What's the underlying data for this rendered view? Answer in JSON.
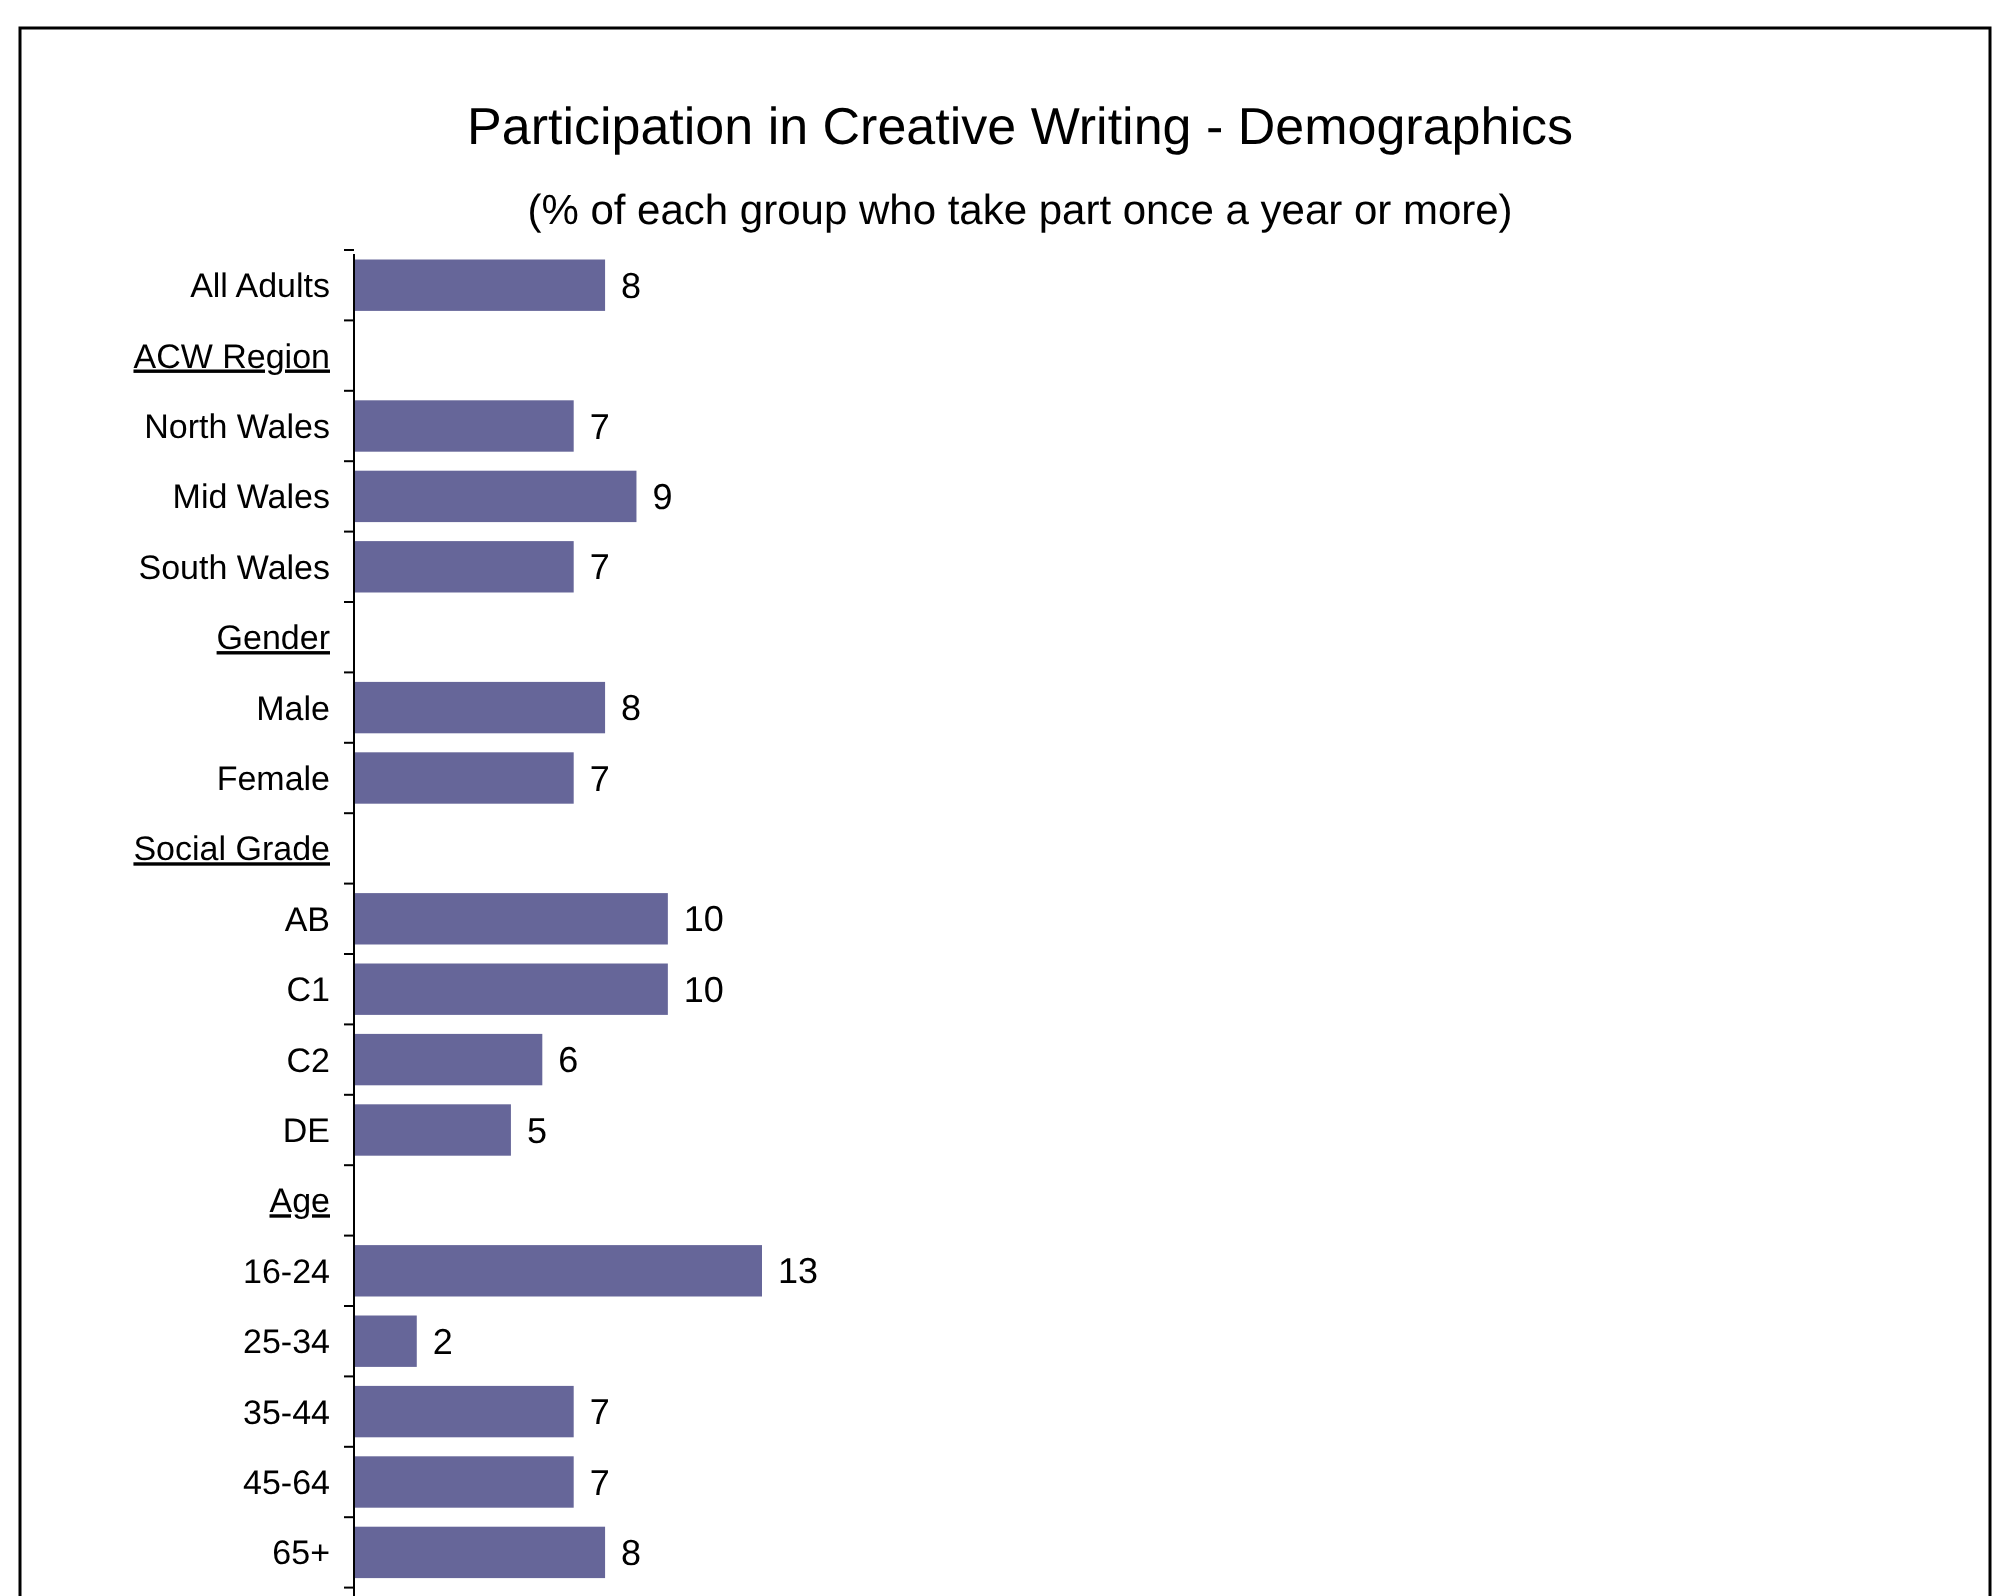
{
  "chart_data": {
    "type": "bar",
    "orientation": "horizontal",
    "title": "Participation in Creative Writing - Demographics",
    "subtitle": "(% of each group who take part once a year or more)",
    "categories": [
      "All Adults",
      "ACW Region",
      "North Wales",
      "Mid Wales",
      "South Wales",
      "Gender",
      "Male",
      "Female",
      "Social Grade",
      "AB",
      "C1",
      "C2",
      "DE",
      "Age",
      "16-24",
      "25-34",
      "35-44",
      "45-64",
      "65+"
    ],
    "values": [
      8,
      null,
      7,
      9,
      7,
      null,
      8,
      7,
      null,
      10,
      10,
      6,
      5,
      null,
      13,
      2,
      7,
      7,
      8
    ],
    "color": "#666699",
    "data_labels": true
  }
}
